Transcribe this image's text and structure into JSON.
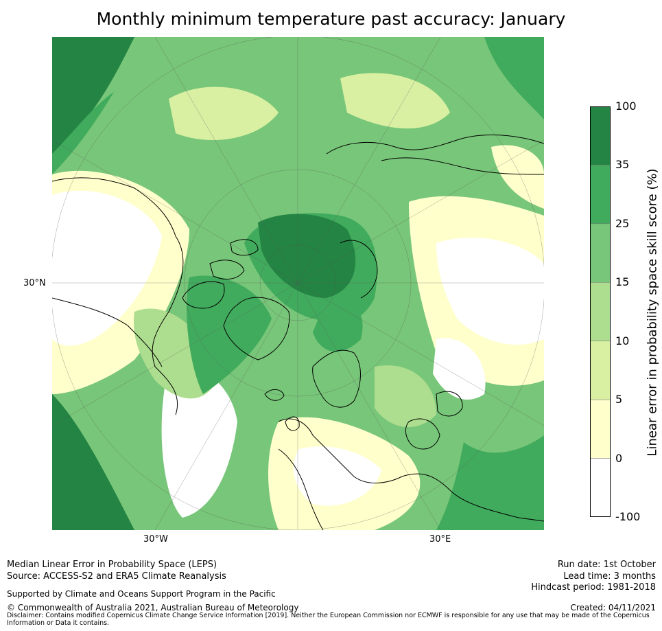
{
  "title": "Monthly minimum temperature past accuracy: January",
  "map": {
    "projection": "north-polar-stereographic",
    "lat_label": "30°N",
    "lon_labels": [
      "30°W",
      "30°E"
    ]
  },
  "colorbar": {
    "label": "Linear error in probability space skill score (%)",
    "ticks": [
      "100",
      "35",
      "25",
      "15",
      "10",
      "5",
      "0",
      "-100"
    ],
    "bins": [
      {
        "range": "35 to 100",
        "color": "#238443"
      },
      {
        "range": "25 to 35",
        "color": "#41ab5d"
      },
      {
        "range": "15 to 25",
        "color": "#78c679"
      },
      {
        "range": "10 to 15",
        "color": "#addd8e"
      },
      {
        "range": "5 to 10",
        "color": "#d9f0a3"
      },
      {
        "range": "0 to 5",
        "color": "#ffffcc"
      },
      {
        "range": "-100 to 0",
        "color": "#ffffff"
      }
    ]
  },
  "footer": {
    "left": {
      "line1": "Median Linear Error in Probability Space (LEPS)",
      "line2": "Source: ACCESS-S2 and ERA5 Climate Reanalysis",
      "line3": "Supported by Climate and Oceans Support Program in the Pacific",
      "line4": "© Commonwealth of Australia 2021, Australian Bureau of Meteorology",
      "disclaimer": "Disclaimer: Contains modified Copernicus Climate Change Service Information [2019]. Neither the European Commission nor ECMWF is responsible for any use that may be made of the Copernicus Information or Data it contains."
    },
    "right": {
      "run_date": "Run date: 1st October",
      "lead_time": "Lead time: 3 months",
      "hindcast": "Hindcast period: 1981-2018",
      "created": "Created: 04/11/2021"
    }
  }
}
